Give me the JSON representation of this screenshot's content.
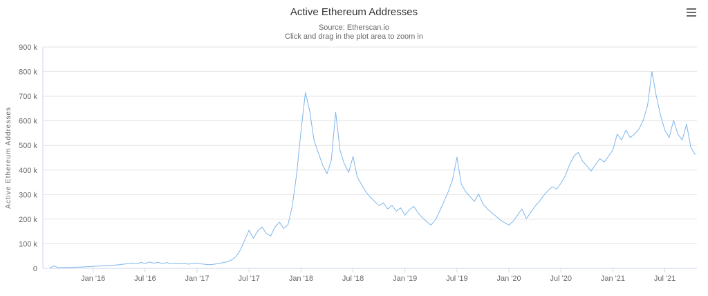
{
  "icons": {
    "context_menu": "hamburger-icon"
  },
  "chart_data": {
    "type": "line",
    "title": "Active Ethereum Addresses",
    "subtitle_source": "Source: Etherscan.io",
    "subtitle_hint": "Click and drag in the plot area to zoom in",
    "ylabel": "Active Ethereum Addresses",
    "xlabel": "",
    "legend": "none",
    "grid": "horizontal",
    "line_color": "#7cb5ec",
    "grid_color": "#e6e6e6",
    "axis_line_color": "#ccd6eb",
    "text_color": "#666666",
    "title_color": "#333333",
    "y_max_k": 900,
    "ylim_k": [
      0,
      900
    ],
    "yticks": [
      {
        "label": "0",
        "value": 0
      },
      {
        "label": "100 k",
        "value": 100
      },
      {
        "label": "200 k",
        "value": 200
      },
      {
        "label": "300 k",
        "value": 300
      },
      {
        "label": "400 k",
        "value": 400
      },
      {
        "label": "500 k",
        "value": 500
      },
      {
        "label": "600 k",
        "value": 600
      },
      {
        "label": "700 k",
        "value": 700
      },
      {
        "label": "800 k",
        "value": 800
      },
      {
        "label": "900 k",
        "value": 900
      }
    ],
    "xticks": [
      {
        "label": "Jan '16",
        "month": 5
      },
      {
        "label": "Jul '16",
        "month": 11
      },
      {
        "label": "Jan '17",
        "month": 17
      },
      {
        "label": "Jul '17",
        "month": 23
      },
      {
        "label": "Jan '18",
        "month": 29
      },
      {
        "label": "Jul '18",
        "month": 35
      },
      {
        "label": "Jan '19",
        "month": 41
      },
      {
        "label": "Jul '19",
        "month": 47
      },
      {
        "label": "Jan '20",
        "month": 53
      },
      {
        "label": "Jul '20",
        "month": 59
      },
      {
        "label": "Jan '21",
        "month": 65
      },
      {
        "label": "Jul '21",
        "month": 71
      }
    ],
    "x_start": "Aug 2015",
    "axis_offset_months": 0.8,
    "axis_total_months": 75.5,
    "series": [
      {
        "name": "Active Ethereum Addresses",
        "unit": "thousands of addresses",
        "interval_months": 0.5,
        "values_k": [
          1,
          10,
          2,
          3,
          3,
          4,
          5,
          5,
          6,
          7,
          8,
          9,
          10,
          11,
          12,
          13,
          15,
          17,
          19,
          22,
          18,
          24,
          20,
          26,
          21,
          24,
          20,
          23,
          19,
          22,
          18,
          21,
          17,
          20,
          22,
          18,
          16,
          15,
          17,
          20,
          23,
          27,
          34,
          48,
          75,
          115,
          155,
          122,
          152,
          168,
          142,
          132,
          168,
          188,
          162,
          178,
          255,
          385,
          560,
          715,
          640,
          520,
          470,
          420,
          385,
          440,
          635,
          480,
          425,
          390,
          455,
          370,
          340,
          310,
          290,
          272,
          255,
          266,
          242,
          256,
          232,
          246,
          216,
          238,
          252,
          226,
          206,
          190,
          176,
          196,
          232,
          272,
          312,
          362,
          452,
          342,
          312,
          292,
          272,
          302,
          262,
          242,
          226,
          212,
          196,
          186,
          176,
          192,
          216,
          242,
          202,
          226,
          252,
          272,
          296,
          316,
          332,
          322,
          346,
          376,
          422,
          456,
          472,
          436,
          416,
          396,
          422,
          446,
          432,
          456,
          482,
          546,
          522,
          562,
          532,
          546,
          566,
          602,
          662,
          800,
          702,
          622,
          562,
          532,
          602,
          546,
          522,
          586,
          492,
          462
        ]
      }
    ]
  }
}
